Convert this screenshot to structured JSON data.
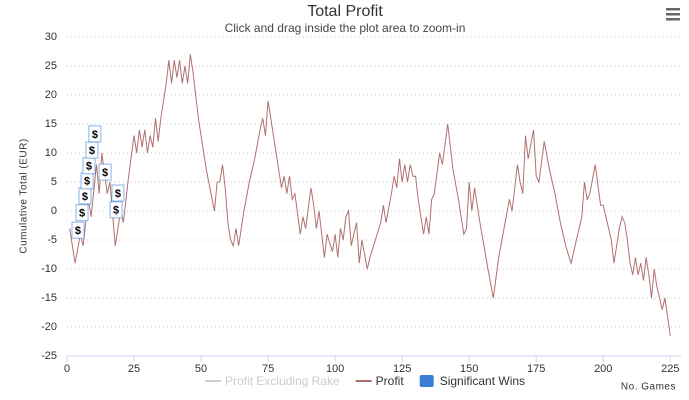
{
  "chart_data": {
    "type": "line",
    "title": "Total Profit",
    "subtitle": "Click and drag inside the plot area to zoom-in",
    "y_label": "Cumulative Total (EUR)",
    "x_label": "No. Games",
    "xlim": [
      0,
      229
    ],
    "xticks": [
      0,
      25,
      50,
      75,
      100,
      125,
      150,
      175,
      200,
      225
    ],
    "ylim": [
      -25,
      30
    ],
    "yticks": [
      -25,
      -20,
      -15,
      -10,
      -5,
      0,
      5,
      10,
      15,
      20,
      25,
      30
    ],
    "grid": true,
    "flag_text": "$",
    "series": [
      {
        "name": "Profit Excluding Rake",
        "color": "#cccccc",
        "visible": false
      },
      {
        "name": "Profit",
        "color": "#b07070",
        "visible": true,
        "x": [
          1,
          3,
          5,
          6,
          8,
          9,
          11,
          12,
          13,
          15,
          16,
          18,
          20,
          21,
          23,
          25,
          26,
          27,
          28,
          29,
          30,
          31,
          32,
          33,
          34,
          35,
          37,
          38,
          39,
          40,
          41,
          42,
          43,
          44,
          45,
          46,
          47,
          49,
          52,
          55,
          56,
          57,
          58,
          59,
          60,
          61,
          62,
          63,
          64,
          66,
          68,
          70,
          72,
          73,
          74,
          75,
          76,
          78,
          80,
          81,
          82,
          83,
          84,
          85,
          87,
          88,
          89,
          91,
          92,
          93,
          94,
          96,
          97,
          99,
          100,
          101,
          102,
          103,
          104,
          105,
          106,
          108,
          109,
          110,
          112,
          113,
          115,
          117,
          118,
          119,
          121,
          122,
          123,
          124,
          125,
          126,
          127,
          128,
          129,
          130,
          131,
          133,
          134,
          135,
          136,
          137,
          139,
          140,
          142,
          144,
          146,
          148,
          149,
          150,
          151,
          152,
          154,
          157,
          159,
          161,
          163,
          165,
          166,
          168,
          169,
          170,
          171,
          172,
          174,
          175,
          176,
          178,
          180,
          181,
          182,
          184,
          186,
          188,
          190,
          192,
          193,
          194,
          195,
          197,
          199,
          200,
          201,
          203,
          204,
          206,
          207,
          208,
          209,
          210,
          211,
          212,
          213,
          214,
          215,
          216,
          217,
          218,
          219,
          220,
          222,
          223,
          225
        ],
        "values": [
          -3,
          -9,
          -4,
          -6,
          2,
          -1,
          8,
          3,
          10,
          3,
          5,
          -6,
          0,
          -2,
          6,
          13,
          10,
          14,
          11,
          14,
          10,
          13,
          11,
          16,
          12,
          16,
          22,
          26,
          22,
          26,
          23,
          26,
          22,
          25,
          22,
          27,
          24,
          16,
          7,
          0,
          5,
          5,
          8,
          4,
          -2,
          -5,
          -6,
          -3,
          -6,
          0,
          5,
          9,
          14,
          16,
          13,
          19,
          16,
          10,
          4,
          6,
          3,
          6,
          2,
          3,
          -4,
          -1,
          -3,
          4,
          1,
          -3,
          0,
          -8,
          -4,
          -7,
          -4,
          -8,
          -3,
          -5,
          -1,
          0,
          -6,
          -2,
          -9,
          -5,
          -10,
          -8,
          -5,
          -2,
          1,
          -2,
          3,
          6,
          4,
          9,
          5,
          8,
          5,
          8,
          6,
          6,
          2,
          -4,
          -1,
          -4,
          2,
          3,
          10,
          8,
          15,
          7,
          2,
          -4,
          -3,
          5,
          0,
          4,
          -2,
          -10,
          -15,
          -8,
          -3,
          2,
          0,
          8,
          5,
          3,
          13,
          9,
          14,
          6,
          5,
          12,
          7,
          5,
          3,
          -2,
          -6,
          -9,
          -5,
          -1,
          5,
          2,
          3,
          8,
          1,
          1,
          -1,
          -5,
          -9,
          -3,
          -1,
          -2,
          -5,
          -9,
          -11,
          -8,
          -11,
          -9,
          -12,
          -8,
          -11,
          -15,
          -10,
          -13,
          -17,
          -15,
          -21.5
        ]
      },
      {
        "name": "Significant Wins",
        "color": "#3a7fd5",
        "visible": true,
        "x": [
          4.1,
          5.6,
          6.7,
          7.5,
          8.2,
          9.3,
          10.4,
          14.2,
          19.0,
          18.3
        ],
        "values": [
          -3.3,
          -0.3,
          2.6,
          5.2,
          7.8,
          10.5,
          13.3,
          6.7,
          3.1,
          0.2
        ]
      }
    ]
  }
}
